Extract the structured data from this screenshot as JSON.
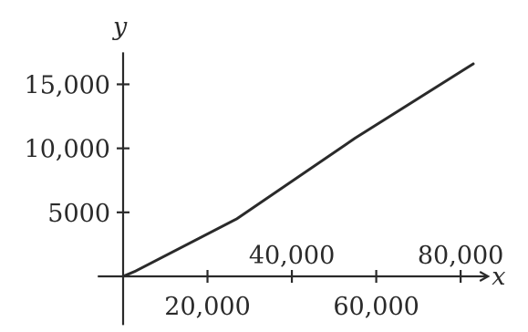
{
  "chart_data": {
    "type": "line",
    "xlabel": "x",
    "ylabel": "y",
    "xlim": [
      -27000,
      90000
    ],
    "ylim": [
      -3000,
      18000
    ],
    "x_ticks": [
      20000,
      40000,
      60000,
      80000
    ],
    "x_tick_labels": [
      "20,000",
      "40,000",
      "60,000",
      "80,000"
    ],
    "y_ticks": [
      5000,
      10000,
      15000
    ],
    "y_tick_labels": [
      "5000",
      "10,000",
      "15,000"
    ],
    "grid": false,
    "series": [
      {
        "x": [
          0,
          3000,
          27000,
          55000,
          83000
        ],
        "y": [
          0,
          420,
          4500,
          10800,
          16600
        ]
      }
    ]
  }
}
